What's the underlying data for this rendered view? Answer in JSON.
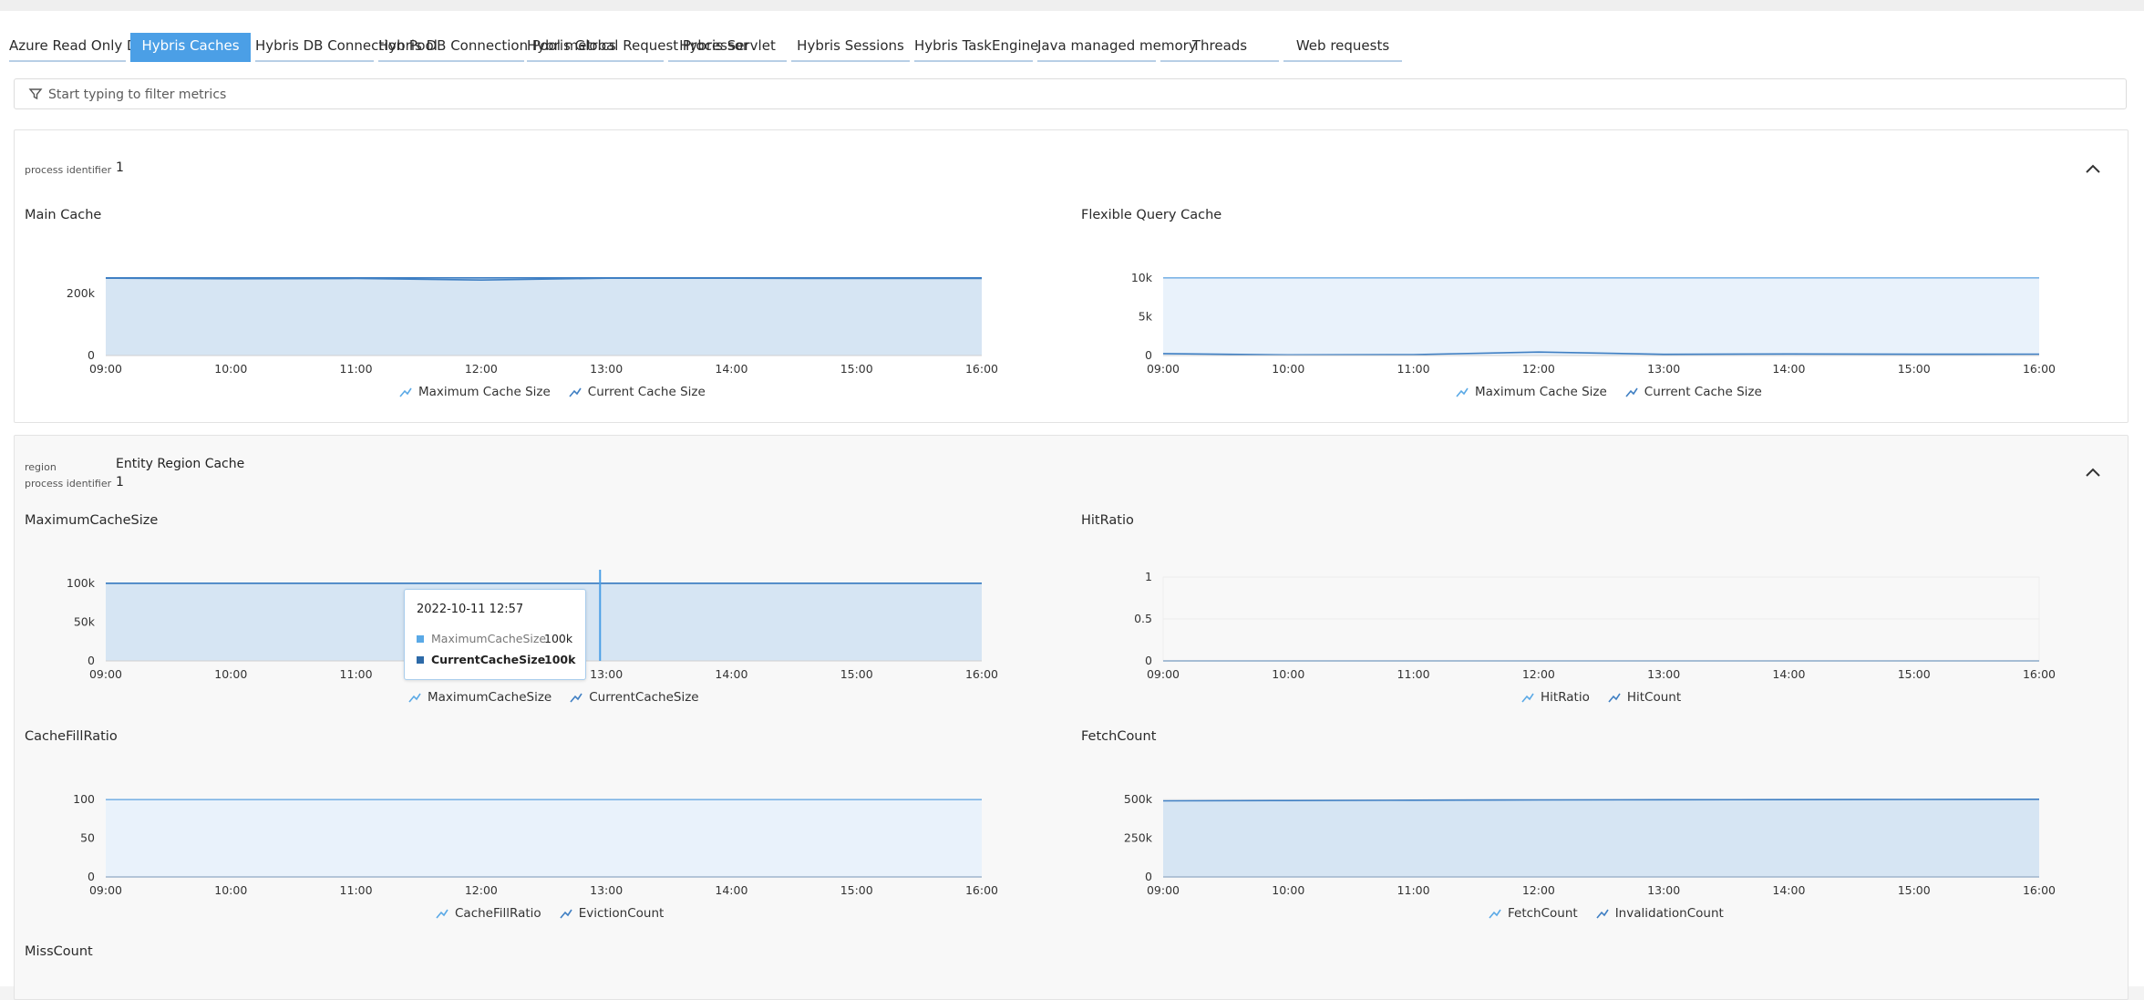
{
  "tabs": [
    "Azure Read Only Database",
    "Hybris Caches",
    "Hybris DB Connection Pool",
    "Hybris DB Connection Pool metrics",
    "Hybris Global Request Processor",
    "Hybris Servlet",
    "Hybris Sessions",
    "Hybris TaskEngine",
    "Java managed memory",
    "Threads",
    "Web requests"
  ],
  "active_tab": "Hybris Caches",
  "filter": {
    "placeholder": "Start typing to filter metrics"
  },
  "colors": {
    "active_tab": "#4b9fe6",
    "series_fill": "#d6e5f3",
    "series_line": "#3f7fc3",
    "light_fill": "#e9f2fb",
    "light_line": "#7db4e6"
  },
  "groups": [
    {
      "dims": [
        {
          "key": "process identifier",
          "value": "1"
        }
      ]
    },
    {
      "dims": [
        {
          "key": "region",
          "value": "Entity Region Cache"
        },
        {
          "key": "process identifier",
          "value": "1"
        }
      ]
    }
  ],
  "chart_data": [
    {
      "type": "area",
      "title": "Main Cache",
      "x": [
        "09:00",
        "10:00",
        "11:00",
        "12:00",
        "13:00",
        "14:00",
        "15:00",
        "16:00"
      ],
      "y_ticks": [
        "0",
        "200k"
      ],
      "ylim": [
        0,
        270000
      ],
      "series": [
        {
          "name": "Maximum Cache Size",
          "values": [
            250000,
            250000,
            250000,
            250000,
            250000,
            250000,
            250000,
            250000
          ]
        },
        {
          "name": "Current Cache Size",
          "values": [
            249000,
            247000,
            248000,
            243000,
            249000,
            249000,
            248000,
            248000
          ]
        }
      ],
      "legend": "bottom"
    },
    {
      "type": "area",
      "title": "Flexible Query Cache",
      "x": [
        "09:00",
        "10:00",
        "11:00",
        "12:00",
        "13:00",
        "14:00",
        "15:00",
        "16:00"
      ],
      "y_ticks": [
        "0",
        "5k",
        "10k"
      ],
      "ylim": [
        0,
        10800
      ],
      "series": [
        {
          "name": "Maximum Cache Size",
          "values": [
            10000,
            10000,
            10000,
            10000,
            10000,
            10000,
            10000,
            10000
          ]
        },
        {
          "name": "Current Cache Size",
          "values": [
            250,
            80,
            120,
            450,
            150,
            200,
            170,
            180
          ]
        }
      ],
      "legend": "bottom"
    },
    {
      "type": "area",
      "title": "MaximumCacheSize",
      "x": [
        "09:00",
        "10:00",
        "11:00",
        "12:00",
        "13:00",
        "14:00",
        "15:00",
        "16:00"
      ],
      "y_ticks": [
        "0",
        "50k",
        "100k"
      ],
      "ylim": [
        0,
        108000
      ],
      "series": [
        {
          "name": "MaximumCacheSize",
          "values": [
            100000,
            100000,
            100000,
            100000,
            100000,
            100000,
            100000,
            100000
          ]
        },
        {
          "name": "CurrentCacheSize",
          "values": [
            100000,
            100000,
            100000,
            100000,
            100000,
            100000,
            100000,
            100000
          ]
        }
      ],
      "legend": "bottom",
      "tooltip": {
        "date": "2022-10-11 12:57",
        "rows": [
          {
            "name": "MaximumCacheSize",
            "value": "100k",
            "color": "#5aa9e6",
            "bold": false
          },
          {
            "name": "CurrentCacheSize",
            "value": "100k",
            "color": "#2d6aa8",
            "bold": true
          }
        ]
      }
    },
    {
      "type": "line",
      "title": "HitRatio",
      "x": [
        "09:00",
        "10:00",
        "11:00",
        "12:00",
        "13:00",
        "14:00",
        "15:00",
        "16:00"
      ],
      "y_ticks": [
        "0",
        "0.5",
        "1"
      ],
      "ylim": [
        0,
        1
      ],
      "series": [
        {
          "name": "HitRatio",
          "values": [
            0,
            0,
            0,
            0,
            0,
            0,
            0,
            0
          ]
        },
        {
          "name": "HitCount",
          "values": [
            0,
            0,
            0,
            0,
            0,
            0,
            0,
            0
          ]
        }
      ],
      "legend": "bottom"
    },
    {
      "type": "area",
      "title": "CacheFillRatio",
      "x": [
        "09:00",
        "10:00",
        "11:00",
        "12:00",
        "13:00",
        "14:00",
        "15:00",
        "16:00"
      ],
      "y_ticks": [
        "0",
        "50",
        "100"
      ],
      "ylim": [
        0,
        108
      ],
      "series": [
        {
          "name": "CacheFillRatio",
          "values": [
            99.5,
            99.5,
            99.5,
            99.5,
            99.5,
            99.5,
            99.5,
            99.5
          ]
        },
        {
          "name": "EvictionCount",
          "values": [
            0,
            0,
            0,
            0,
            0,
            0,
            0,
            0
          ]
        }
      ],
      "legend": "bottom"
    },
    {
      "type": "area",
      "title": "FetchCount",
      "x": [
        "09:00",
        "10:00",
        "11:00",
        "12:00",
        "13:00",
        "14:00",
        "15:00",
        "16:00"
      ],
      "y_ticks": [
        "0",
        "250k",
        "500k"
      ],
      "ylim": [
        0,
        540000
      ],
      "series": [
        {
          "name": "FetchCount",
          "values": [
            490000,
            492000,
            494000,
            496000,
            497000,
            498000,
            499000,
            500000
          ]
        },
        {
          "name": "InvalidationCount",
          "values": [
            0,
            0,
            0,
            0,
            0,
            0,
            0,
            0
          ]
        }
      ],
      "legend": "bottom"
    },
    {
      "type": "area",
      "title": "MissCount",
      "x": [],
      "series": []
    }
  ]
}
